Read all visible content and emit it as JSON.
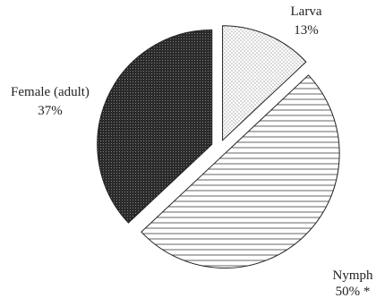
{
  "chart_data": {
    "type": "pie",
    "title": "",
    "slices": [
      {
        "name": "Larva",
        "value": 13,
        "value_label": "13%",
        "pattern": "dots",
        "color": "#9a9a9a"
      },
      {
        "name": "Nymph",
        "value": 50,
        "value_label": "50% *",
        "pattern": "horizontal-lines",
        "color": "#444444"
      },
      {
        "name": "Female (adult)",
        "value": 37,
        "value_label": "37%",
        "pattern": "dense-dark",
        "color": "#2a2a2a"
      }
    ],
    "exploded": true,
    "legend": "none"
  }
}
